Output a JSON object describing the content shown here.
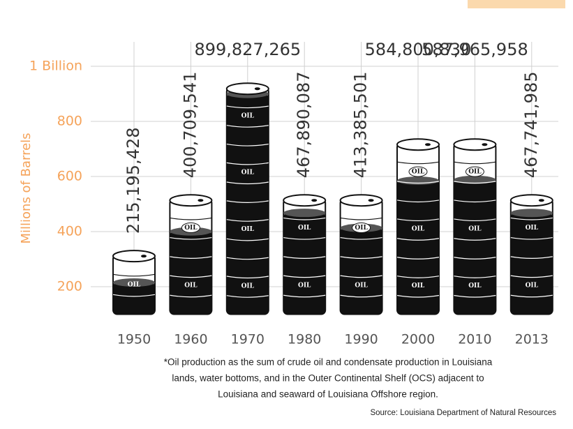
{
  "chart_data": {
    "type": "barrel",
    "y_label": "Millions of Barrels",
    "categories": [
      "1950",
      "1960",
      "1970",
      "1980",
      "1990",
      "2000",
      "2010",
      "2013"
    ],
    "values": [
      215.195428,
      400.709541,
      899.827265,
      467.890087,
      413.385501,
      584.80083,
      587.965958,
      467.741985
    ],
    "value_labels": [
      "215,195,428",
      "400,709,541",
      "899,827,265",
      "467,890,087",
      "413,385,501",
      "584,800,830",
      "587,965,958",
      "467,741,985"
    ],
    "barrel_label": "OIL",
    "color": "#111111",
    "ylim": [
      100,
      1000
    ],
    "yticks": [
      200,
      400,
      600,
      800,
      {
        "value": 1000,
        "label": "1 Billion"
      }
    ],
    "grid": true,
    "footnote": [
      "*Oil production as the sum of crude oil and condensate production in Louisiana",
      "lands, water bottoms, and in the Outer Continental Shelf (OCS) adjacent to",
      "Louisiana and seaward of Louisiana Offshore region."
    ],
    "source": "Source: Louisiana Department of Natural Resources"
  }
}
